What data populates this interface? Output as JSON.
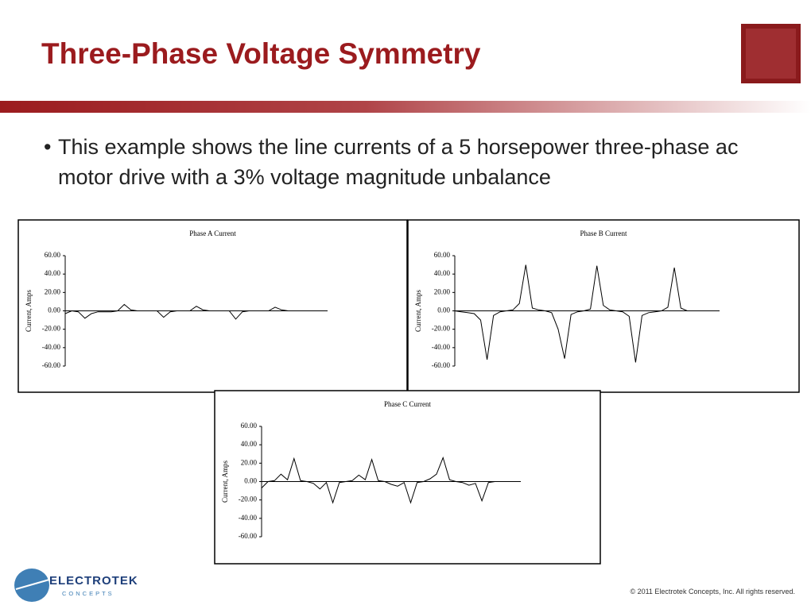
{
  "slide": {
    "title": "Three-Phase Voltage Symmetry",
    "bullet": "This example shows the line currents of a 5 horsepower three-phase ac motor drive with a 3% voltage magnitude unbalance",
    "logo_name": "ELECTROTEK",
    "logo_sub": "CONCEPTS",
    "footer": "© 2011 Electrotek Concepts,  Inc. All rights reserved."
  },
  "chart_data": [
    {
      "type": "line",
      "title": "Phase A Current",
      "ylabel": "Current, Amps",
      "color": "#000000",
      "ylim": [
        -60,
        60
      ],
      "yticks": [
        {
          "value": 60,
          "label": "60.00"
        },
        {
          "value": 40,
          "label": "40.00"
        },
        {
          "value": 20,
          "label": "20.00"
        },
        {
          "value": 0,
          "label": "0.00"
        },
        {
          "value": -20,
          "label": "-20.00"
        },
        {
          "value": -40,
          "label": "-40.00"
        },
        {
          "value": -60,
          "label": "-60.00"
        }
      ],
      "values": [
        -3,
        0,
        -1,
        -8,
        -3,
        -1,
        -1,
        -1,
        0,
        7,
        1,
        0,
        0,
        0,
        0,
        -7,
        -1,
        0,
        0,
        0,
        5,
        1,
        0,
        0,
        0,
        0,
        -9,
        -1,
        0,
        0,
        0,
        0,
        4,
        1,
        0,
        0,
        0,
        0,
        0,
        0,
        0
      ]
    },
    {
      "type": "line",
      "title": "Phase B Current",
      "ylabel": "Current, Amps",
      "color": "#000000",
      "ylim": [
        -60,
        60
      ],
      "yticks": [
        {
          "value": 60,
          "label": "60.00"
        },
        {
          "value": 40,
          "label": "40.00"
        },
        {
          "value": 20,
          "label": "20.00"
        },
        {
          "value": 0,
          "label": "0.00"
        },
        {
          "value": -20,
          "label": "-20.00"
        },
        {
          "value": -40,
          "label": "-40.00"
        },
        {
          "value": -60,
          "label": "-60.00"
        }
      ],
      "values": [
        0,
        -1,
        -2,
        -3,
        -10,
        -53,
        -5,
        -1,
        0,
        1,
        8,
        50,
        3,
        1,
        0,
        -2,
        -20,
        -52,
        -4,
        -1,
        0,
        2,
        49,
        6,
        1,
        0,
        -1,
        -6,
        -56,
        -5,
        -2,
        -1,
        0,
        4,
        47,
        3,
        0,
        0,
        0,
        0,
        0,
        0
      ]
    },
    {
      "type": "line",
      "title": "Phase C Current",
      "ylabel": "Current, Amps",
      "color": "#000000",
      "ylim": [
        -60,
        60
      ],
      "yticks": [
        {
          "value": 60,
          "label": "60.00"
        },
        {
          "value": 40,
          "label": "40.00"
        },
        {
          "value": 20,
          "label": "20.00"
        },
        {
          "value": 0,
          "label": "0.00"
        },
        {
          "value": -20,
          "label": "-20.00"
        },
        {
          "value": -40,
          "label": "-40.00"
        },
        {
          "value": -60,
          "label": "-60.00"
        }
      ],
      "values": [
        -7,
        0,
        1,
        8,
        2,
        25,
        1,
        0,
        -2,
        -8,
        -1,
        -23,
        -1,
        0,
        1,
        7,
        2,
        24,
        1,
        0,
        -3,
        -5,
        -1,
        -23,
        -1,
        0,
        3,
        8,
        26,
        2,
        0,
        -1,
        -4,
        -2,
        -21,
        -1,
        0,
        0,
        0,
        0,
        0
      ]
    }
  ]
}
